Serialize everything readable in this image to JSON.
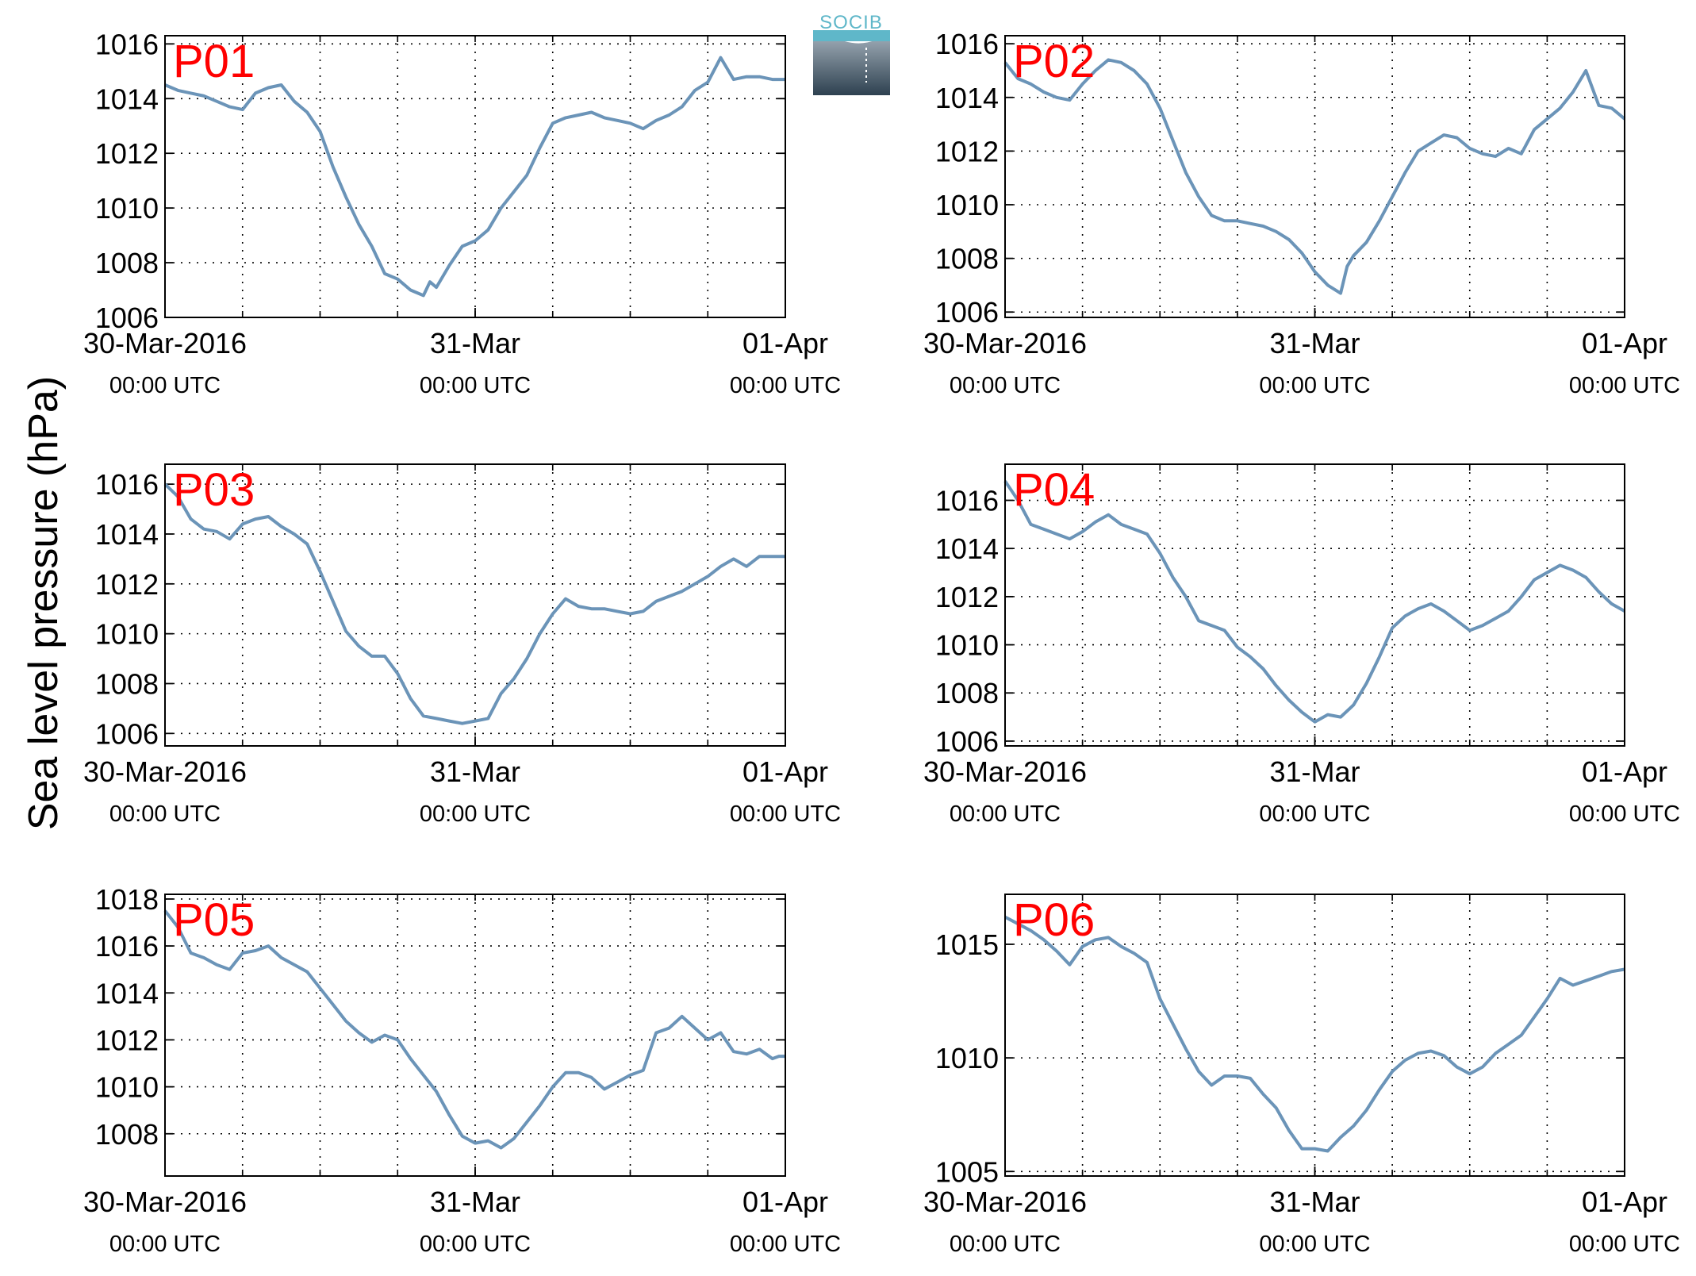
{
  "figure": {
    "ylabel": "Sea level pressure (hPa)",
    "logo_text": "SOCIB",
    "line_color": "#6b94b8",
    "label_color": "#ff0000",
    "grid": "dotted"
  },
  "chart_data": [
    {
      "type": "line",
      "title": "P01",
      "ylim": [
        1006,
        1016.3
      ],
      "yticks": [
        1006,
        1008,
        1010,
        1012,
        1014,
        1016
      ],
      "xticks": [
        {
          "at": 0,
          "date": "30-Mar-2016",
          "time": "00:00 UTC"
        },
        {
          "at": 24,
          "date": "31-Mar",
          "time": "00:00 UTC"
        },
        {
          "at": 48,
          "date": "01-Apr",
          "time": "00:00 UTC"
        }
      ],
      "xlim": [
        0,
        48
      ],
      "series": [
        {
          "x": [
            0,
            1,
            2,
            3,
            4,
            5,
            6,
            7,
            8,
            9,
            10,
            11,
            12,
            13,
            14,
            15,
            16,
            17,
            18,
            19,
            20,
            20.5,
            21,
            22,
            23,
            24,
            25,
            26,
            27,
            28,
            29,
            30,
            31,
            32,
            33,
            34,
            35,
            36,
            37,
            38,
            39,
            40,
            41,
            42,
            43,
            44,
            45,
            46,
            47,
            48
          ],
          "values": [
            1014.5,
            1014.3,
            1014.2,
            1014.1,
            1013.9,
            1013.7,
            1013.6,
            1014.2,
            1014.4,
            1014.5,
            1013.9,
            1013.5,
            1012.8,
            1011.5,
            1010.4,
            1009.4,
            1008.6,
            1007.6,
            1007.4,
            1007.0,
            1006.8,
            1007.3,
            1007.1,
            1007.9,
            1008.6,
            1008.8,
            1009.2,
            1010.0,
            1010.6,
            1011.2,
            1012.2,
            1013.1,
            1013.3,
            1013.4,
            1013.5,
            1013.3,
            1013.2,
            1013.1,
            1012.9,
            1013.2,
            1013.4,
            1013.7,
            1014.3,
            1014.6,
            1015.5,
            1014.7,
            1014.8,
            1014.8,
            1014.7,
            1014.7
          ]
        }
      ]
    },
    {
      "type": "line",
      "title": "P02",
      "ylim": [
        1005.8,
        1016.3
      ],
      "yticks": [
        1006,
        1008,
        1010,
        1012,
        1014,
        1016
      ],
      "xticks": [
        {
          "at": 0,
          "date": "30-Mar-2016",
          "time": "00:00 UTC"
        },
        {
          "at": 24,
          "date": "31-Mar",
          "time": "00:00 UTC"
        },
        {
          "at": 48,
          "date": "01-Apr",
          "time": "00:00 UTC"
        }
      ],
      "xlim": [
        0,
        48
      ],
      "series": [
        {
          "x": [
            0,
            1,
            2,
            3,
            4,
            5,
            6,
            7,
            8,
            9,
            10,
            11,
            12,
            13,
            14,
            15,
            16,
            17,
            18,
            19,
            20,
            21,
            22,
            23,
            24,
            25,
            26,
            26.5,
            27,
            28,
            29,
            30,
            31,
            32,
            33,
            34,
            35,
            36,
            37,
            38,
            39,
            40,
            41,
            42,
            43,
            44,
            45,
            46,
            47,
            48
          ],
          "values": [
            1015.3,
            1014.7,
            1014.5,
            1014.2,
            1014.0,
            1013.9,
            1014.5,
            1015.0,
            1015.4,
            1015.3,
            1015.0,
            1014.5,
            1013.6,
            1012.4,
            1011.2,
            1010.3,
            1009.6,
            1009.4,
            1009.4,
            1009.3,
            1009.2,
            1009.0,
            1008.7,
            1008.2,
            1007.5,
            1007.0,
            1006.7,
            1007.7,
            1008.1,
            1008.6,
            1009.4,
            1010.3,
            1011.2,
            1012.0,
            1012.3,
            1012.6,
            1012.5,
            1012.1,
            1011.9,
            1011.8,
            1012.1,
            1011.9,
            1012.8,
            1013.2,
            1013.6,
            1014.2,
            1015.0,
            1013.7,
            1013.6,
            1013.2
          ]
        }
      ]
    },
    {
      "type": "line",
      "title": "P03",
      "ylim": [
        1005.5,
        1016.8
      ],
      "yticks": [
        1006,
        1008,
        1010,
        1012,
        1014,
        1016
      ],
      "xticks": [
        {
          "at": 0,
          "date": "30-Mar-2016",
          "time": "00:00 UTC"
        },
        {
          "at": 24,
          "date": "31-Mar",
          "time": "00:00 UTC"
        },
        {
          "at": 48,
          "date": "01-Apr",
          "time": "00:00 UTC"
        }
      ],
      "xlim": [
        0,
        48
      ],
      "series": [
        {
          "x": [
            0,
            1,
            2,
            3,
            4,
            5,
            6,
            7,
            8,
            9,
            10,
            11,
            12,
            13,
            14,
            15,
            16,
            17,
            18,
            19,
            20,
            21,
            22,
            23,
            24,
            25,
            26,
            27,
            28,
            29,
            30,
            31,
            32,
            33,
            34,
            35,
            36,
            37,
            38,
            39,
            40,
            41,
            42,
            43,
            44,
            45,
            46,
            47,
            48
          ],
          "values": [
            1016.0,
            1015.5,
            1014.6,
            1014.2,
            1014.1,
            1013.8,
            1014.4,
            1014.6,
            1014.7,
            1014.3,
            1014.0,
            1013.6,
            1012.5,
            1011.3,
            1010.1,
            1009.5,
            1009.1,
            1009.1,
            1008.4,
            1007.4,
            1006.7,
            1006.6,
            1006.5,
            1006.4,
            1006.5,
            1006.6,
            1007.6,
            1008.2,
            1009.0,
            1010.0,
            1010.8,
            1011.4,
            1011.1,
            1011.0,
            1011.0,
            1010.9,
            1010.8,
            1010.9,
            1011.3,
            1011.5,
            1011.7,
            1012.0,
            1012.3,
            1012.7,
            1013.0,
            1012.7,
            1013.1,
            1013.1,
            1013.1
          ]
        }
      ]
    },
    {
      "type": "line",
      "title": "P04",
      "ylim": [
        1005.8,
        1017.5
      ],
      "yticks": [
        1006,
        1008,
        1010,
        1012,
        1014,
        1016
      ],
      "xticks": [
        {
          "at": 0,
          "date": "30-Mar-2016",
          "time": "00:00 UTC"
        },
        {
          "at": 24,
          "date": "31-Mar",
          "time": "00:00 UTC"
        },
        {
          "at": 48,
          "date": "01-Apr",
          "time": "00:00 UTC"
        }
      ],
      "xlim": [
        0,
        48
      ],
      "series": [
        {
          "x": [
            0,
            1,
            2,
            3,
            4,
            5,
            6,
            7,
            8,
            9,
            10,
            11,
            12,
            13,
            14,
            15,
            16,
            17,
            18,
            19,
            20,
            21,
            22,
            23,
            24,
            25,
            26,
            27,
            28,
            29,
            30,
            31,
            32,
            33,
            34,
            35,
            36,
            37,
            38,
            39,
            40,
            41,
            42,
            43,
            44,
            45,
            46,
            47,
            48
          ],
          "values": [
            1016.8,
            1016.0,
            1015.0,
            1014.8,
            1014.6,
            1014.4,
            1014.7,
            1015.1,
            1015.4,
            1015.0,
            1014.8,
            1014.6,
            1013.8,
            1012.8,
            1012.0,
            1011.0,
            1010.8,
            1010.6,
            1009.9,
            1009.5,
            1009.0,
            1008.3,
            1007.7,
            1007.2,
            1006.8,
            1007.1,
            1007.0,
            1007.5,
            1008.4,
            1009.5,
            1010.7,
            1011.2,
            1011.5,
            1011.7,
            1011.4,
            1011.0,
            1010.6,
            1010.8,
            1011.1,
            1011.4,
            1012.0,
            1012.7,
            1013.0,
            1013.3,
            1013.1,
            1012.8,
            1012.2,
            1011.7,
            1011.4
          ]
        }
      ]
    },
    {
      "type": "line",
      "title": "P05",
      "ylim": [
        1006.2,
        1018.2
      ],
      "yticks": [
        1008,
        1010,
        1012,
        1014,
        1016,
        1018
      ],
      "xticks": [
        {
          "at": 0,
          "date": "30-Mar-2016",
          "time": "00:00 UTC"
        },
        {
          "at": 24,
          "date": "31-Mar",
          "time": "00:00 UTC"
        },
        {
          "at": 48,
          "date": "01-Apr",
          "time": "00:00 UTC"
        }
      ],
      "xlim": [
        0,
        48
      ],
      "series": [
        {
          "x": [
            0,
            1,
            2,
            3,
            4,
            5,
            6,
            7,
            8,
            9,
            10,
            11,
            12,
            13,
            14,
            15,
            16,
            17,
            18,
            19,
            20,
            21,
            22,
            23,
            24,
            25,
            26,
            27,
            28,
            29,
            30,
            31,
            32,
            33,
            34,
            35,
            36,
            37,
            38,
            39,
            40,
            41,
            42,
            43,
            44,
            45,
            46,
            47,
            47.5,
            48
          ],
          "values": [
            1017.5,
            1016.8,
            1015.7,
            1015.5,
            1015.2,
            1015.0,
            1015.7,
            1015.8,
            1016.0,
            1015.5,
            1015.2,
            1014.9,
            1014.2,
            1013.5,
            1012.8,
            1012.3,
            1011.9,
            1012.2,
            1012.0,
            1011.2,
            1010.5,
            1009.8,
            1008.8,
            1007.9,
            1007.6,
            1007.7,
            1007.4,
            1007.8,
            1008.5,
            1009.2,
            1010.0,
            1010.6,
            1010.6,
            1010.4,
            1009.9,
            1010.2,
            1010.5,
            1010.7,
            1012.3,
            1012.5,
            1013.0,
            1012.5,
            1012.0,
            1012.3,
            1011.5,
            1011.4,
            1011.6,
            1011.2,
            1011.3,
            1011.3
          ]
        }
      ]
    },
    {
      "type": "line",
      "title": "P06",
      "ylim": [
        1004.8,
        1017.2
      ],
      "yticks": [
        1005,
        1010,
        1015
      ],
      "xticks": [
        {
          "at": 0,
          "date": "30-Mar-2016",
          "time": "00:00 UTC"
        },
        {
          "at": 24,
          "date": "31-Mar",
          "time": "00:00 UTC"
        },
        {
          "at": 48,
          "date": "01-Apr",
          "time": "00:00 UTC"
        }
      ],
      "xlim": [
        0,
        48
      ],
      "series": [
        {
          "x": [
            0,
            1,
            2,
            3,
            4,
            5,
            6,
            7,
            8,
            9,
            10,
            11,
            12,
            13,
            14,
            15,
            16,
            17,
            18,
            19,
            20,
            21,
            22,
            23,
            24,
            25,
            26,
            27,
            28,
            29,
            30,
            31,
            32,
            33,
            34,
            35,
            36,
            37,
            38,
            39,
            40,
            41,
            42,
            43,
            44,
            45,
            46,
            47,
            48
          ],
          "values": [
            1016.2,
            1015.9,
            1015.6,
            1015.2,
            1014.7,
            1014.1,
            1014.9,
            1015.2,
            1015.3,
            1014.9,
            1014.6,
            1014.2,
            1012.6,
            1011.5,
            1010.4,
            1009.4,
            1008.8,
            1009.2,
            1009.2,
            1009.1,
            1008.4,
            1007.8,
            1006.8,
            1006.0,
            1006.0,
            1005.9,
            1006.5,
            1007.0,
            1007.7,
            1008.6,
            1009.4,
            1009.9,
            1010.2,
            1010.3,
            1010.1,
            1009.6,
            1009.3,
            1009.6,
            1010.2,
            1010.6,
            1011.0,
            1011.8,
            1012.6,
            1013.5,
            1013.2,
            1013.4,
            1013.6,
            1013.8,
            1013.9
          ]
        }
      ]
    }
  ]
}
